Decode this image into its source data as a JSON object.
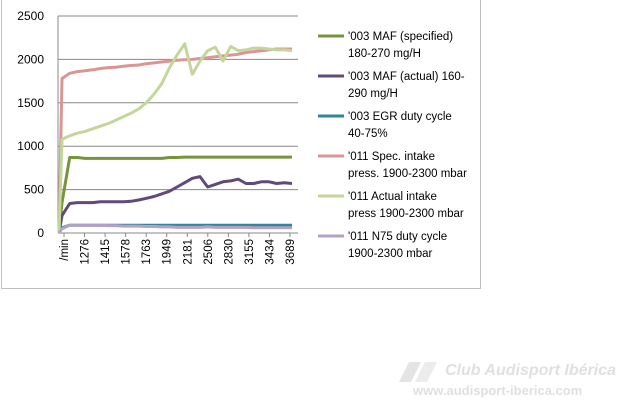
{
  "chart_data": {
    "type": "line",
    "x_tick_labels": [
      "/min",
      "1276",
      "1415",
      "1578",
      "1763",
      "1949",
      "2181",
      "2506",
      "2830",
      "3155",
      "3434",
      "3689"
    ],
    "ylim": [
      0,
      2500
    ],
    "yticks": [
      0,
      500,
      1000,
      1500,
      2000,
      2500
    ],
    "grid": "horizontal",
    "legend_position": "right",
    "series": [
      {
        "name": "'003 MAF (specified) 180-270 mg/H",
        "color": "#77933c",
        "values": [
          350,
          870,
          870,
          860,
          860,
          860,
          860,
          860,
          860,
          860,
          860,
          860,
          860,
          860,
          870,
          870,
          875,
          875,
          875,
          875,
          875,
          875,
          875,
          875,
          875,
          875,
          875,
          875,
          875,
          875,
          875
        ]
      },
      {
        "name": "'003 MAF (actual) 160-290 mg/H",
        "color": "#604a7b",
        "values": [
          200,
          340,
          350,
          350,
          350,
          360,
          360,
          360,
          360,
          365,
          380,
          400,
          420,
          450,
          480,
          530,
          580,
          630,
          650,
          530,
          560,
          590,
          600,
          620,
          570,
          570,
          590,
          590,
          570,
          580,
          570
        ]
      },
      {
        "name": "'003 EGR duty cycle 40-75%",
        "color": "#31859c",
        "values": [
          60,
          90,
          90,
          90,
          90,
          90,
          90,
          90,
          90,
          90,
          90,
          90,
          90,
          90,
          90,
          90,
          90,
          90,
          90,
          90,
          90,
          90,
          90,
          90,
          90,
          90,
          90,
          90,
          90,
          90,
          90
        ]
      },
      {
        "name": "'011 Spec. intake press. 1900-2300 mbar",
        "color": "#d99694",
        "values": [
          1780,
          1840,
          1860,
          1870,
          1880,
          1895,
          1905,
          1910,
          1920,
          1930,
          1935,
          1950,
          1960,
          1970,
          1980,
          1990,
          1995,
          2000,
          2010,
          2020,
          2030,
          2040,
          2050,
          2060,
          2080,
          2090,
          2100,
          2110,
          2120,
          2120,
          2120
        ]
      },
      {
        "name": "'011 Actual intake press 1900-2300 mbar",
        "color": "#c3d69b",
        "values": [
          1080,
          1120,
          1150,
          1170,
          1200,
          1230,
          1260,
          1300,
          1340,
          1380,
          1430,
          1500,
          1600,
          1720,
          1900,
          2050,
          2180,
          1830,
          1980,
          2100,
          2140,
          1980,
          2150,
          2100,
          2110,
          2130,
          2130,
          2120,
          2110,
          2110,
          2100
        ]
      },
      {
        "name": "'011 N75 duty cycle 1900-2300 mbar",
        "color": "#b3a2c7",
        "values": [
          50,
          90,
          90,
          90,
          90,
          90,
          85,
          85,
          80,
          80,
          80,
          75,
          75,
          70,
          70,
          65,
          65,
          65,
          65,
          70,
          65,
          65,
          65,
          65,
          65,
          60,
          60,
          60,
          60,
          60,
          60
        ]
      }
    ],
    "legend_lines": [
      [
        "'003 MAF (specified)",
        "180-270 mg/H"
      ],
      [
        "'003 MAF (actual)  160-",
        "290 mg/H"
      ],
      [
        "'003 EGR duty cycle",
        "40-75%"
      ],
      [
        "'011 Spec. intake",
        "press. 1900-2300 mbar"
      ],
      [
        "'011 Actual intake",
        "press 1900-2300 mbar"
      ],
      [
        "'011 N75 duty cycle",
        "1900-2300 mbar"
      ]
    ]
  },
  "watermark": {
    "title": "Club Audisport Ibérica",
    "url": "www.audisport-iberica.com"
  }
}
